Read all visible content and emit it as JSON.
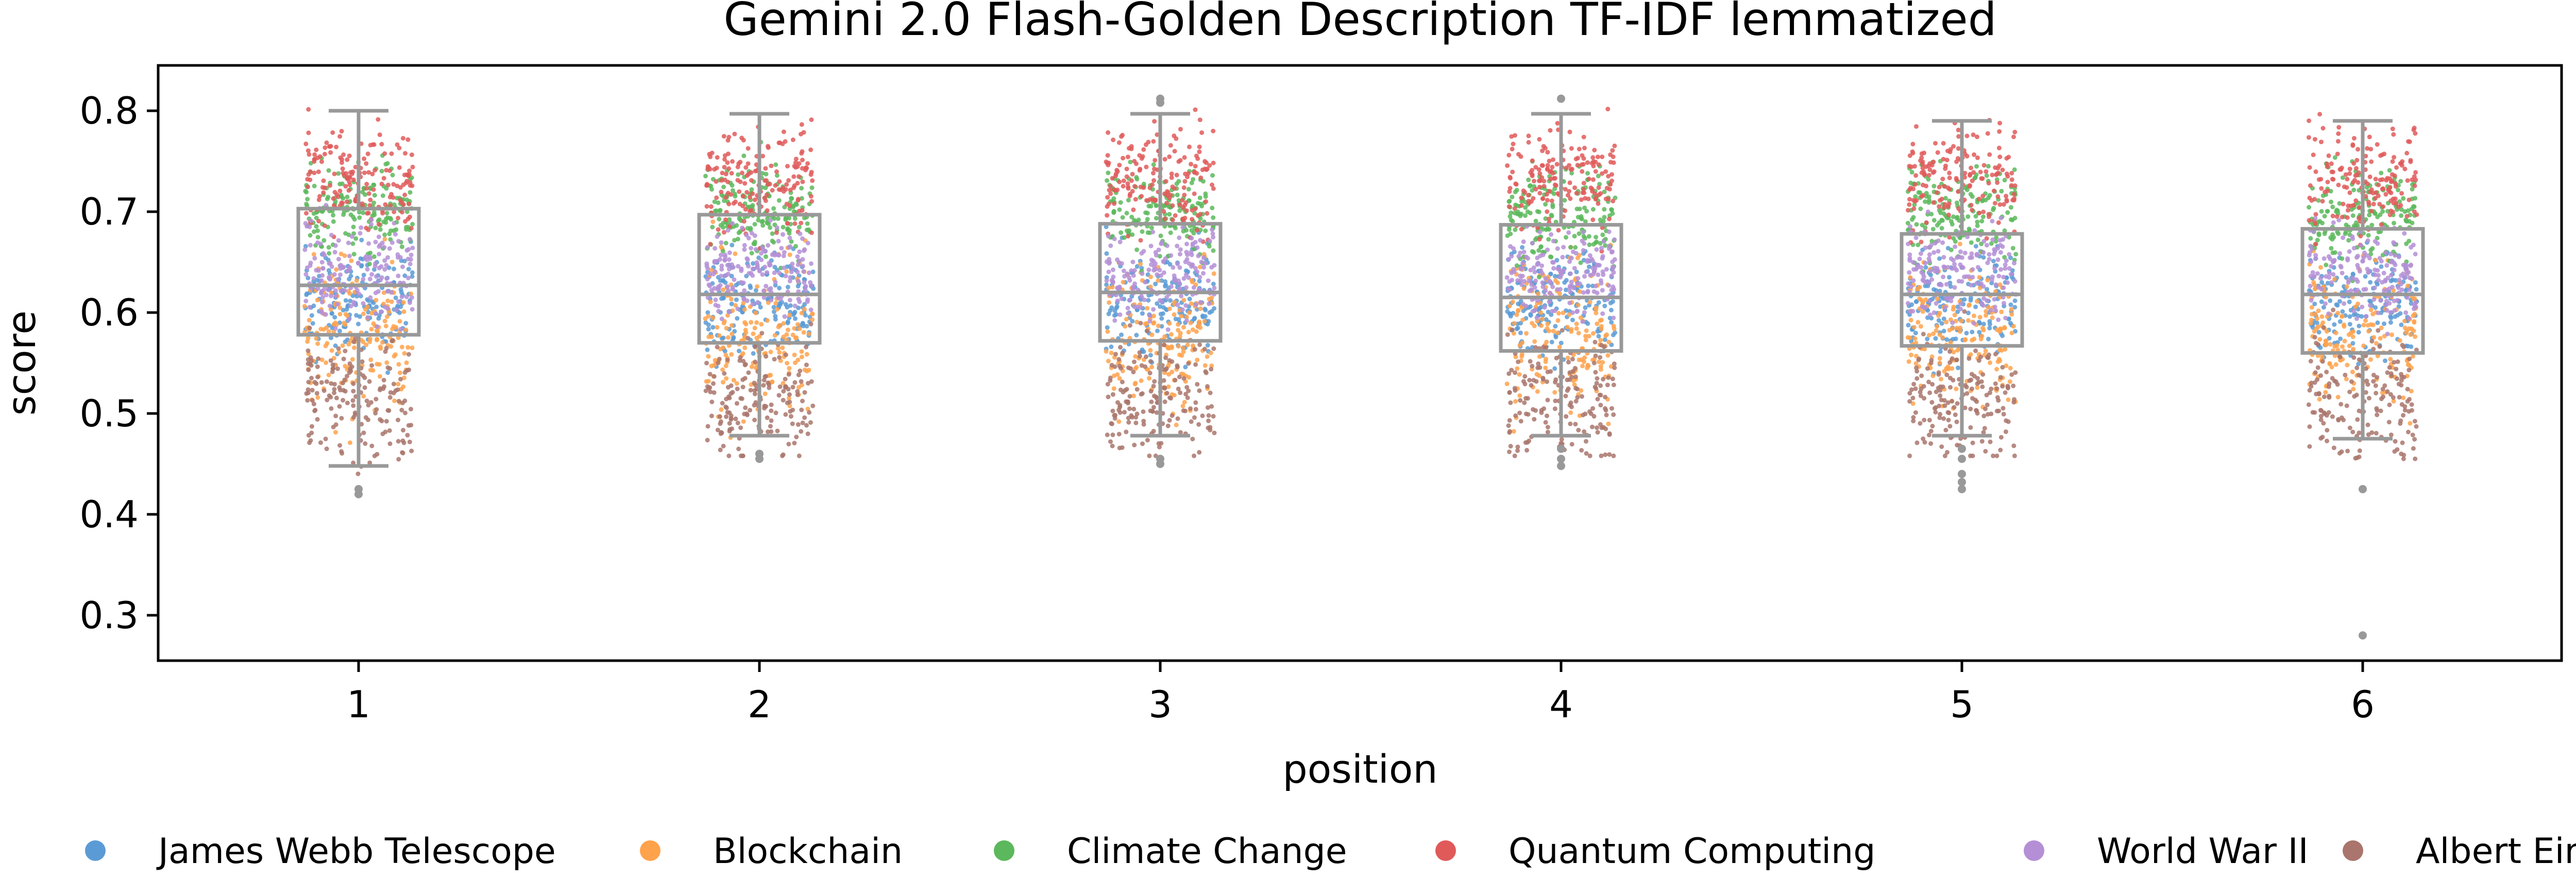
{
  "chart_data": {
    "type": "box",
    "title": "Gemini 2.0 Flash-Golden Description TF-IDF lemmatized",
    "xlabel": "position",
    "ylabel": "score",
    "ylim": [
      0.255,
      0.845
    ],
    "yticks": [
      0.3,
      0.4,
      0.5,
      0.6,
      0.7,
      0.8
    ],
    "categories": [
      "1",
      "2",
      "3",
      "4",
      "5",
      "6"
    ],
    "boxes": [
      {
        "position": "1",
        "whisker_low": 0.448,
        "q1": 0.578,
        "median": 0.627,
        "q3": 0.703,
        "whisker_high": 0.8,
        "outliers": [
          0.42,
          0.425
        ]
      },
      {
        "position": "2",
        "whisker_low": 0.478,
        "q1": 0.57,
        "median": 0.618,
        "q3": 0.697,
        "whisker_high": 0.797,
        "outliers": [
          0.455,
          0.46
        ]
      },
      {
        "position": "3",
        "whisker_low": 0.478,
        "q1": 0.572,
        "median": 0.62,
        "q3": 0.688,
        "whisker_high": 0.797,
        "outliers": [
          0.45,
          0.455,
          0.812,
          0.808
        ]
      },
      {
        "position": "4",
        "whisker_low": 0.478,
        "q1": 0.562,
        "median": 0.615,
        "q3": 0.687,
        "whisker_high": 0.797,
        "outliers": [
          0.448,
          0.455,
          0.465,
          0.812
        ]
      },
      {
        "position": "5",
        "whisker_low": 0.478,
        "q1": 0.567,
        "median": 0.618,
        "q3": 0.678,
        "whisker_high": 0.79,
        "outliers": [
          0.425,
          0.432,
          0.44,
          0.455,
          0.465
        ]
      },
      {
        "position": "6",
        "whisker_low": 0.475,
        "q1": 0.56,
        "median": 0.618,
        "q3": 0.683,
        "whisker_high": 0.79,
        "outliers": [
          0.28,
          0.425
        ]
      }
    ],
    "series": [
      {
        "name": "James Webb Telescope",
        "color": "#5b9bd5",
        "range": [
          0.54,
          0.68
        ]
      },
      {
        "name": "Blockchain",
        "color": "#ffa24c",
        "range": [
          0.48,
          0.68
        ]
      },
      {
        "name": "Climate Change",
        "color": "#5cb85c",
        "range": [
          0.64,
          0.76
        ]
      },
      {
        "name": "Quantum Computing",
        "color": "#e05a5a",
        "range": [
          0.66,
          0.8
        ]
      },
      {
        "name": "World War II",
        "color": "#b48fd6",
        "range": [
          0.58,
          0.7
        ]
      },
      {
        "name": "Albert Einstein",
        "color": "#a9756c",
        "range": [
          0.43,
          0.6
        ]
      }
    ],
    "legend_position": "bottom",
    "grid": false
  }
}
